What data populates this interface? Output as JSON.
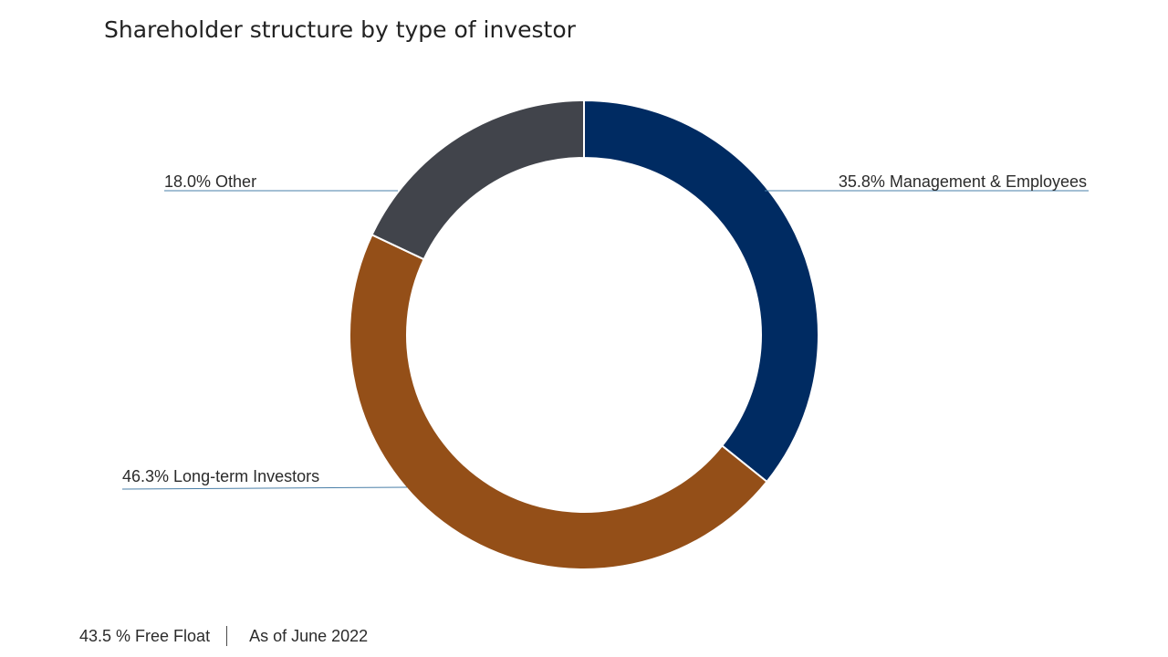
{
  "title": "Shareholder structure by type of investor",
  "chart_data": {
    "type": "pie",
    "donut": true,
    "title": "Shareholder structure by type of investor",
    "slices": [
      {
        "label": "Management & Employees",
        "value": 35.8,
        "value_text": "35.8%",
        "color": "#002b62"
      },
      {
        "label": "Long-term Investors",
        "value": 46.3,
        "value_text": "46.3%",
        "color": "#944f18"
      },
      {
        "label": "Other",
        "value": 18.0,
        "value_text": "18.0%",
        "color": "#41444b"
      }
    ],
    "leader_line_color": "#4a7fa8"
  },
  "footer": {
    "free_float": "43.5 % Free Float",
    "as_of": "As of June 2022"
  }
}
